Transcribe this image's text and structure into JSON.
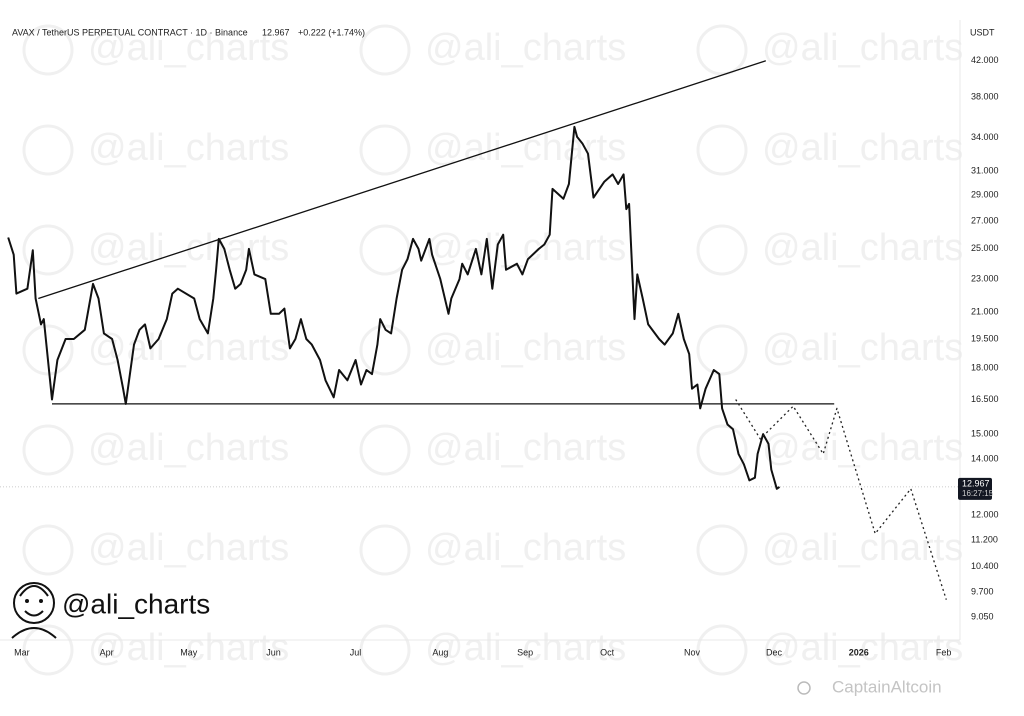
{
  "chart_data": {
    "type": "line",
    "title": "AVAX / TetherUS PERPETUAL CONTRACT · 1D · Binance",
    "header_price": "12.967",
    "header_change": "+0.222 (+1.74%)",
    "y_axis_label": "USDT",
    "watermark": "@ali_charts",
    "credit": "CaptainAltcoin",
    "log_scale": true,
    "grid": false,
    "xlim": [
      -8,
      343
    ],
    "xticks": [
      {
        "value": 0,
        "label": "Mar"
      },
      {
        "value": 31,
        "label": "Apr"
      },
      {
        "value": 61,
        "label": "May"
      },
      {
        "value": 92,
        "label": "Jun"
      },
      {
        "value": 122,
        "label": "Jul"
      },
      {
        "value": 153,
        "label": "Aug"
      },
      {
        "value": 184,
        "label": "Sep"
      },
      {
        "value": 214,
        "label": "Oct"
      },
      {
        "value": 245,
        "label": "Nov"
      },
      {
        "value": 275,
        "label": "Dec"
      },
      {
        "value": 306,
        "label": "2026"
      },
      {
        "value": 337,
        "label": "Feb"
      }
    ],
    "ylim": [
      8.5,
      47
    ],
    "yticks": [
      {
        "value": 42,
        "label": "42.000"
      },
      {
        "value": 38,
        "label": "38.000"
      },
      {
        "value": 34,
        "label": "34.000"
      },
      {
        "value": 31,
        "label": "31.000"
      },
      {
        "value": 29,
        "label": "29.000"
      },
      {
        "value": 27,
        "label": "27.000"
      },
      {
        "value": 25,
        "label": "25.000"
      },
      {
        "value": 23,
        "label": "23.000"
      },
      {
        "value": 21,
        "label": "21.000"
      },
      {
        "value": 19.5,
        "label": "19.500"
      },
      {
        "value": 18,
        "label": "18.000"
      },
      {
        "value": 16.5,
        "label": "16.500"
      },
      {
        "value": 15,
        "label": "15.000"
      },
      {
        "value": 14,
        "label": "14.000"
      },
      {
        "value": 12,
        "label": "12.000"
      },
      {
        "value": 11.2,
        "label": "11.200"
      },
      {
        "value": 10.4,
        "label": "10.400"
      },
      {
        "value": 9.7,
        "label": "9.700"
      },
      {
        "value": 9.05,
        "label": "9.050"
      }
    ],
    "price_line": 12.967,
    "countdown": "16:27:15",
    "series": [
      {
        "color": "#111111",
        "style": "solid",
        "width": 2,
        "x": [
          -5,
          -3,
          -2,
          2,
          4,
          5,
          7,
          8,
          11,
          13,
          16,
          19,
          23,
          26,
          28,
          30,
          33,
          35,
          37,
          38,
          41,
          43,
          45,
          47,
          50,
          53,
          55,
          57,
          63,
          65,
          68,
          70,
          71,
          72,
          74,
          76,
          78,
          80,
          82,
          83,
          85,
          89,
          91,
          94,
          96,
          98,
          100,
          102,
          104,
          106,
          109,
          111,
          114,
          116,
          119,
          122,
          124,
          126,
          128,
          130,
          131,
          133,
          135,
          137,
          139,
          141,
          143,
          145,
          146,
          149,
          150,
          153,
          156,
          157,
          160,
          161,
          163,
          166,
          168,
          170,
          172,
          174,
          176,
          177,
          181,
          183,
          185,
          189,
          191,
          193,
          194,
          198,
          200,
          202,
          203,
          205,
          207,
          209,
          213,
          216,
          218,
          220,
          221,
          222,
          224,
          225,
          227,
          229,
          233,
          235,
          238,
          240,
          242,
          244,
          245,
          247,
          248,
          250,
          253,
          255,
          256,
          258,
          260,
          262,
          264,
          266,
          268,
          269,
          271,
          273,
          274,
          276,
          277
        ],
        "values": [
          25.8,
          24.6,
          22.1,
          22.4,
          24.9,
          21.8,
          20.3,
          20.6,
          16.5,
          18.4,
          19.5,
          19.5,
          20.0,
          22.7,
          21.8,
          19.8,
          19.5,
          18.4,
          17.0,
          16.3,
          19.2,
          20.0,
          20.3,
          19.0,
          19.5,
          20.6,
          22.1,
          22.4,
          21.8,
          20.6,
          19.8,
          21.8,
          23.6,
          25.7,
          25.0,
          23.6,
          22.4,
          22.7,
          23.6,
          25.0,
          23.3,
          23.0,
          20.9,
          20.9,
          21.2,
          19.0,
          19.5,
          20.6,
          19.5,
          19.2,
          18.4,
          17.4,
          16.6,
          17.9,
          17.4,
          18.4,
          17.2,
          17.9,
          17.7,
          19.2,
          20.6,
          20.0,
          19.8,
          21.8,
          23.6,
          24.3,
          25.7,
          25.0,
          24.2,
          25.7,
          24.6,
          23.0,
          20.9,
          21.8,
          23.0,
          24.0,
          23.3,
          25.0,
          23.3,
          25.7,
          22.4,
          25.3,
          26.0,
          23.6,
          24.0,
          23.3,
          24.3,
          25.0,
          25.3,
          26.0,
          29.5,
          28.7,
          29.9,
          35.0,
          34.05,
          33.4,
          32.5,
          28.8,
          30.1,
          30.7,
          29.9,
          30.7,
          27.9,
          28.3,
          20.6,
          23.3,
          21.8,
          20.3,
          19.5,
          19.2,
          19.8,
          20.9,
          19.5,
          18.7,
          17.0,
          17.2,
          16.1,
          17.0,
          17.9,
          17.7,
          16.1,
          15.4,
          15.2,
          14.2,
          13.8,
          13.2,
          13.3,
          14.2,
          15.0,
          14.6,
          13.6,
          12.9,
          12.967
        ]
      },
      {
        "color": "#111111",
        "style": "solid",
        "width": 1.3,
        "x": [
          6,
          272
        ],
        "values": [
          21.8,
          42
        ]
      },
      {
        "color": "#111111",
        "style": "solid",
        "width": 1.3,
        "x": [
          11,
          297
        ],
        "values": [
          16.3,
          16.3
        ]
      },
      {
        "color": "#222222",
        "style": "dotted",
        "width": 1.3,
        "x": [
          261,
          270,
          282,
          293,
          298,
          312,
          325,
          338
        ],
        "values": [
          16.5,
          14.8,
          16.2,
          14.2,
          16.1,
          11.4,
          12.9,
          9.5
        ]
      }
    ]
  }
}
